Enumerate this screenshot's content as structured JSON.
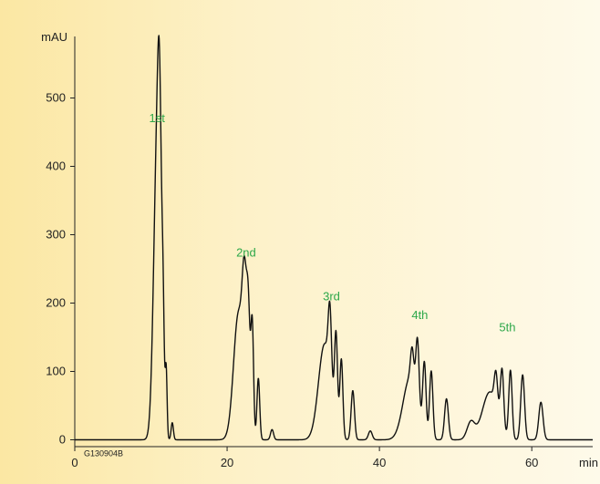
{
  "chart_data": {
    "type": "line",
    "xlabel": "min",
    "ylabel": "mAU",
    "xlim": [
      0,
      68
    ],
    "ylim": [
      -10,
      590
    ],
    "x_ticks": [
      0,
      20,
      40,
      60
    ],
    "y_ticks": [
      0,
      100,
      200,
      300,
      400,
      500
    ],
    "grid": false,
    "figure_code": "G130904B",
    "annotations": [
      {
        "text": "1st",
        "x": 10.8,
        "y": 465
      },
      {
        "text": "2nd",
        "x": 22.5,
        "y": 268
      },
      {
        "text": "3rd",
        "x": 33.7,
        "y": 204
      },
      {
        "text": "4th",
        "x": 45.3,
        "y": 177
      },
      {
        "text": "5th",
        "x": 56.8,
        "y": 159
      }
    ],
    "series": [
      {
        "color": "#111111",
        "peaks": [
          {
            "center": 10.8,
            "height": 420,
            "width": 0.45
          },
          {
            "center": 11.15,
            "height": 250,
            "width": 0.25
          },
          {
            "center": 11.6,
            "height": 120,
            "width": 0.15
          },
          {
            "center": 12.0,
            "height": 95,
            "width": 0.12
          },
          {
            "center": 12.8,
            "height": 25,
            "width": 0.15
          },
          {
            "center": 21.5,
            "height": 185,
            "width": 0.65
          },
          {
            "center": 22.3,
            "height": 170,
            "width": 0.3
          },
          {
            "center": 22.8,
            "height": 150,
            "width": 0.22
          },
          {
            "center": 23.3,
            "height": 165,
            "width": 0.18
          },
          {
            "center": 24.1,
            "height": 90,
            "width": 0.18
          },
          {
            "center": 25.9,
            "height": 15,
            "width": 0.2
          },
          {
            "center": 32.8,
            "height": 140,
            "width": 0.8
          },
          {
            "center": 33.5,
            "height": 105,
            "width": 0.22
          },
          {
            "center": 34.3,
            "height": 135,
            "width": 0.2
          },
          {
            "center": 35.0,
            "height": 115,
            "width": 0.2
          },
          {
            "center": 36.5,
            "height": 72,
            "width": 0.22
          },
          {
            "center": 38.8,
            "height": 13,
            "width": 0.25
          },
          {
            "center": 44.0,
            "height": 90,
            "width": 0.9
          },
          {
            "center": 44.3,
            "height": 50,
            "width": 0.22
          },
          {
            "center": 45.0,
            "height": 100,
            "width": 0.22
          },
          {
            "center": 45.9,
            "height": 105,
            "width": 0.22
          },
          {
            "center": 46.8,
            "height": 100,
            "width": 0.22
          },
          {
            "center": 48.8,
            "height": 60,
            "width": 0.25
          },
          {
            "center": 52.0,
            "height": 25,
            "width": 0.5
          },
          {
            "center": 54.5,
            "height": 70,
            "width": 1.0
          },
          {
            "center": 55.3,
            "height": 50,
            "width": 0.22
          },
          {
            "center": 56.1,
            "height": 85,
            "width": 0.22
          },
          {
            "center": 57.2,
            "height": 100,
            "width": 0.22
          },
          {
            "center": 58.8,
            "height": 95,
            "width": 0.25
          },
          {
            "center": 61.2,
            "height": 55,
            "width": 0.28
          }
        ]
      }
    ]
  }
}
